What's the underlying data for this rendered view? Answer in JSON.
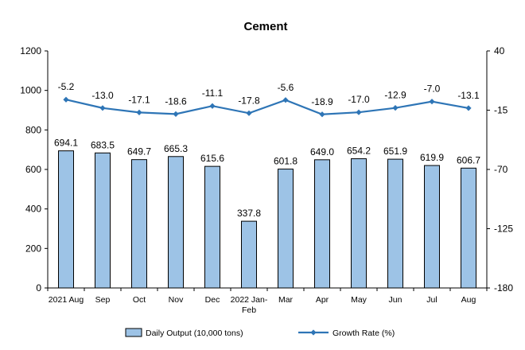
{
  "chart_data": {
    "type": "bar",
    "title": "Cement",
    "categories": [
      "2021 Aug",
      "Sep",
      "Oct",
      "Nov",
      "Dec",
      "2022 Jan-\nFeb",
      "Mar",
      "Apr",
      "May",
      "Jun",
      "Jul",
      "Aug"
    ],
    "series": [
      {
        "name": "Daily Output (10,000 tons)",
        "type": "bar",
        "axis": "left",
        "color": "#9dc3e6",
        "values": [
          694.1,
          683.5,
          649.7,
          665.3,
          615.6,
          337.8,
          601.8,
          649.0,
          654.2,
          651.9,
          619.9,
          606.7
        ],
        "labels": [
          "694.1",
          "683.5",
          "649.7",
          "665.3",
          "615.6",
          "337.8",
          "601.8",
          "649.0",
          "654.2",
          "651.9",
          "619.9",
          "606.7"
        ]
      },
      {
        "name": "Growth Rate (%)",
        "type": "line",
        "axis": "right",
        "color": "#2e75b6",
        "values": [
          -5.2,
          -13.0,
          -17.1,
          -18.6,
          -11.1,
          -17.8,
          -5.6,
          -18.9,
          -17.0,
          -12.9,
          -7.0,
          -13.1
        ],
        "labels": [
          "-5.2",
          "-13.0",
          "-17.1",
          "-18.6",
          "-11.1",
          "-17.8",
          "-5.6",
          "-18.9",
          "-17.0",
          "-12.9",
          "-7.0",
          "-13.1"
        ]
      }
    ],
    "y_left": {
      "lim": [
        0,
        1200
      ],
      "ticks": [
        0,
        200,
        400,
        600,
        800,
        1000,
        1200
      ]
    },
    "y_right": {
      "lim": [
        -180,
        40
      ],
      "ticks": [
        -180,
        -125,
        -70,
        -15,
        40
      ]
    },
    "grid": false,
    "legend": "bottom"
  }
}
